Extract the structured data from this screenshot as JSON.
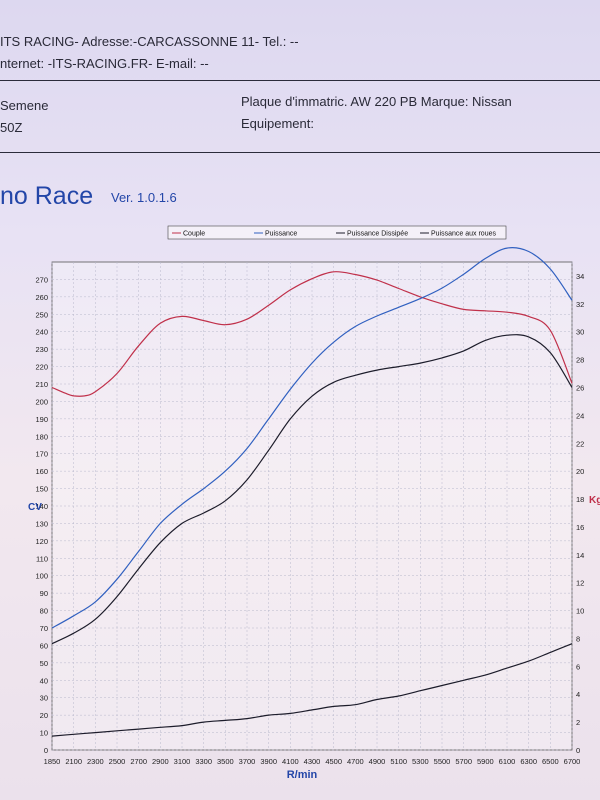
{
  "header": {
    "line1": "ITS RACING-   Adresse:-CARCASSONNE 11-   Tel.: --",
    "line2": "nternet: -ITS-RACING.FR-   E-mail: --",
    "left_name": "Semene",
    "left_code": "50Z",
    "plate": "Plaque d'immatric. AW 220 PB   Marque: Nissan",
    "equipment": "Equipement:"
  },
  "app": {
    "title": "no Race",
    "version": "Ver. 1.0.1.6"
  },
  "colors": {
    "couple": "#c0304a",
    "puissance": "#3060c0",
    "dissipee": "#1c1c2a",
    "roues": "#1c1c2a",
    "grid": "#b8b8cc"
  },
  "chart_data": {
    "type": "line",
    "xlabel": "R/min",
    "ylabel_left": "CV",
    "ylabel_right": "Kg",
    "x_ticks": [
      1850,
      2100,
      2300,
      2500,
      2700,
      2900,
      3100,
      3300,
      3500,
      3700,
      3900,
      4100,
      4300,
      4500,
      4700,
      4900,
      5100,
      5300,
      5500,
      5700,
      5900,
      6100,
      6300,
      6500,
      6700
    ],
    "y_left_ticks": [
      0,
      10,
      20,
      30,
      40,
      50,
      60,
      70,
      80,
      90,
      100,
      110,
      120,
      130,
      140,
      150,
      160,
      170,
      180,
      190,
      200,
      210,
      220,
      230,
      240,
      250,
      260,
      270
    ],
    "y_right_ticks": [
      0,
      2,
      4,
      6,
      8,
      10,
      12,
      14,
      16,
      18,
      20,
      22,
      24,
      26,
      28,
      30,
      32,
      34
    ],
    "y_left_range": [
      0,
      280
    ],
    "y_right_range": [
      0,
      35
    ],
    "legend": [
      "Couple",
      "Puissance",
      "Puissance Dissipée",
      "Puissance aux roues"
    ],
    "series": [
      {
        "name": "Couple",
        "axis": "right",
        "color": "#c0304a",
        "x": [
          1850,
          2000,
          2100,
          2200,
          2300,
          2500,
          2700,
          2900,
          3100,
          3300,
          3500,
          3700,
          3900,
          4100,
          4300,
          4500,
          4700,
          4900,
          5100,
          5300,
          5500,
          5700,
          5900,
          6100,
          6300,
          6500,
          6700
        ],
        "y": [
          26.0,
          25.6,
          25.4,
          25.4,
          25.7,
          27.0,
          29.0,
          30.6,
          31.1,
          30.8,
          30.5,
          30.9,
          31.9,
          33.0,
          33.8,
          34.3,
          34.1,
          33.7,
          33.1,
          32.5,
          32.0,
          31.6,
          31.5,
          31.4,
          31.1,
          30.1,
          26.3
        ]
      },
      {
        "name": "Puissance",
        "axis": "left",
        "color": "#3060c0",
        "x": [
          1850,
          2100,
          2300,
          2500,
          2700,
          2900,
          3100,
          3300,
          3500,
          3700,
          3900,
          4100,
          4300,
          4500,
          4700,
          4900,
          5100,
          5300,
          5500,
          5700,
          5900,
          6100,
          6300,
          6500,
          6700
        ],
        "y": [
          70,
          77,
          85,
          98,
          114,
          130,
          141,
          150,
          160,
          173,
          190,
          207,
          222,
          234,
          243,
          249,
          254,
          259,
          265,
          273,
          282,
          288,
          286,
          276,
          258
        ]
      },
      {
        "name": "Puissance aux roues",
        "axis": "left",
        "color": "#1c1c2a",
        "x": [
          1850,
          2100,
          2300,
          2500,
          2700,
          2900,
          3100,
          3300,
          3500,
          3700,
          3900,
          4100,
          4300,
          4500,
          4700,
          4900,
          5100,
          5300,
          5500,
          5700,
          5900,
          6100,
          6300,
          6500,
          6700
        ],
        "y": [
          61,
          67,
          75,
          88,
          104,
          119,
          130,
          136,
          143,
          155,
          172,
          190,
          203,
          211,
          215,
          218,
          220,
          222,
          225,
          229,
          235,
          238,
          237,
          228,
          208
        ]
      },
      {
        "name": "Puissance Dissipée",
        "axis": "left",
        "color": "#1c1c2a",
        "x": [
          1850,
          2100,
          2300,
          2500,
          2700,
          2900,
          3100,
          3300,
          3500,
          3700,
          3900,
          4100,
          4300,
          4500,
          4700,
          4900,
          5100,
          5300,
          5500,
          5700,
          5900,
          6100,
          6300,
          6500,
          6700
        ],
        "y": [
          8,
          9,
          10,
          11,
          12,
          13,
          14,
          16,
          17,
          18,
          20,
          21,
          23,
          25,
          26,
          29,
          31,
          34,
          37,
          40,
          43,
          47,
          51,
          56,
          61
        ]
      }
    ]
  }
}
